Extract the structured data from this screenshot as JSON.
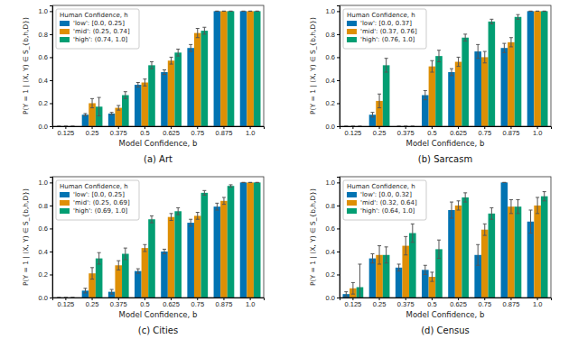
{
  "chart_data": [
    {
      "type": "bar",
      "title": "(a) Art",
      "x_label": "Model Confidence, b",
      "y_label": "P(Y = 1 | (X, Y) ∈ S_{b,h,D})",
      "legend_title": "Human Confidence, h",
      "legend": "upper left",
      "grid": false,
      "categories": [
        "0.125",
        "0.25",
        "0.375",
        "0.5",
        "0.625",
        "0.75",
        "0.875",
        "1.0"
      ],
      "ylim": [
        0,
        1.05
      ],
      "yticks": [
        {
          "value": 0,
          "label": "0.0"
        },
        0.2,
        0.4,
        0.6,
        0.8,
        {
          "value": 1,
          "label": "1.0"
        }
      ],
      "series": [
        {
          "name": "'low': [0.0, 0.25]",
          "color": "#0173b2",
          "values": [
            0,
            0.1,
            0.11,
            0.36,
            0.47,
            0.68,
            1.0,
            1.0
          ],
          "errors": [
            0,
            0.01,
            0.01,
            0.02,
            0.02,
            0.03,
            0,
            0
          ]
        },
        {
          "name": "'mid': (0.25, 0.74]",
          "color": "#de8f05",
          "values": [
            0,
            0.2,
            0.16,
            0.38,
            0.57,
            0.81,
            1.0,
            1.0
          ],
          "errors": [
            0,
            0.04,
            0.02,
            0.03,
            0.03,
            0.04,
            0,
            0
          ]
        },
        {
          "name": "'high': (0.74, 1.0]",
          "color": "#029e73",
          "values": [
            0,
            0.17,
            0.27,
            0.53,
            0.64,
            0.83,
            1.0,
            1.0
          ],
          "errors": [
            0,
            0.08,
            0.03,
            0.03,
            0.03,
            0.03,
            0,
            0
          ]
        }
      ]
    },
    {
      "type": "bar",
      "title": "(b) Sarcasm",
      "x_label": "Model Confidence, b",
      "y_label": "P(Y = 1 | (X, Y) ∈ S_{b,h,D})",
      "legend_title": "Human Confidence, h",
      "legend": "upper left",
      "grid": false,
      "categories": [
        "0.125",
        "0.25",
        "0.375",
        "0.5",
        "0.625",
        "0.75",
        "0.875",
        "1.0"
      ],
      "ylim": [
        0,
        1.05
      ],
      "yticks": [
        {
          "value": 0,
          "label": "0.0"
        },
        0.2,
        0.4,
        0.6,
        0.8,
        {
          "value": 1,
          "label": "1.0"
        }
      ],
      "series": [
        {
          "name": "'low': [0.0, 0.37]",
          "color": "#0173b2",
          "values": [
            0,
            0.1,
            0,
            0.27,
            0.47,
            0.65,
            0.68,
            1.0
          ],
          "errors": [
            0,
            0.02,
            0,
            0.04,
            0.03,
            0.06,
            0.04,
            0
          ]
        },
        {
          "name": "'mid': (0.37, 0.76]",
          "color": "#de8f05",
          "values": [
            0,
            0.22,
            0,
            0.52,
            0.56,
            0.6,
            0.73,
            1.0
          ],
          "errors": [
            0,
            0.06,
            0,
            0.05,
            0.04,
            0.05,
            0.04,
            0
          ]
        },
        {
          "name": "'high': (0.76, 1.0]",
          "color": "#029e73",
          "values": [
            0,
            0.53,
            0,
            0.61,
            0.77,
            0.91,
            0.95,
            1.0
          ],
          "errors": [
            0,
            0.06,
            0,
            0.05,
            0.03,
            0.02,
            0.02,
            0
          ]
        }
      ]
    },
    {
      "type": "bar",
      "title": "(c) Cities",
      "x_label": "Model Confidence, b",
      "y_label": "P(Y = 1 | (X, Y) ∈ S_{b,h,D})",
      "legend_title": "Human Confidence, h",
      "legend": "upper left",
      "grid": false,
      "categories": [
        "0.125",
        "0.25",
        "0.375",
        "0.5",
        "0.625",
        "0.75",
        "0.875",
        "1.0"
      ],
      "ylim": [
        0,
        1.05
      ],
      "yticks": [
        {
          "value": 0,
          "label": "0.0"
        },
        0.2,
        0.4,
        0.6,
        0.8,
        {
          "value": 1,
          "label": "1.0"
        }
      ],
      "series": [
        {
          "name": "'low': [0.0, 0.25]",
          "color": "#0173b2",
          "values": [
            0,
            0.06,
            0.05,
            0.23,
            0.4,
            0.65,
            0.79,
            1.0
          ],
          "errors": [
            0,
            0.02,
            0.02,
            0.02,
            0.02,
            0.03,
            0.03,
            0
          ]
        },
        {
          "name": "'mid': (0.25, 0.69]",
          "color": "#de8f05",
          "values": [
            0,
            0.21,
            0.28,
            0.43,
            0.7,
            0.71,
            0.84,
            1.0
          ],
          "errors": [
            0,
            0.05,
            0.04,
            0.03,
            0.03,
            0.03,
            0.03,
            0
          ]
        },
        {
          "name": "'high': (0.69, 1.0]",
          "color": "#029e73",
          "values": [
            0,
            0.34,
            0.38,
            0.68,
            0.75,
            0.91,
            0.97,
            1.0
          ],
          "errors": [
            0,
            0.05,
            0.05,
            0.03,
            0.03,
            0.02,
            0.01,
            0
          ]
        }
      ]
    },
    {
      "type": "bar",
      "title": "(d) Census",
      "x_label": "Model Confidence, b",
      "y_label": "P(Y = 1 | (X, Y) ∈ S_{b,h,D})",
      "legend_title": "Human Confidence, h",
      "legend": "upper left",
      "grid": false,
      "categories": [
        "0.125",
        "0.25",
        "0.375",
        "0.5",
        "0.625",
        "0.75",
        "0.875",
        "1.0"
      ],
      "ylim": [
        0,
        1.05
      ],
      "yticks": [
        {
          "value": 0,
          "label": "0.0"
        },
        0.2,
        0.4,
        0.6,
        0.8,
        {
          "value": 1,
          "label": "1.0"
        }
      ],
      "series": [
        {
          "name": "'low': [0.0, 0.32]",
          "color": "#0173b2",
          "values": [
            0.03,
            0.34,
            0.26,
            0.24,
            0.76,
            0.37,
            1.0,
            0.66
          ],
          "errors": [
            0.02,
            0.04,
            0.03,
            0.04,
            0.07,
            0.09,
            0,
            0.1
          ]
        },
        {
          "name": "'mid': (0.32, 0.64]",
          "color": "#de8f05",
          "values": [
            0.08,
            0.37,
            0.45,
            0.18,
            0.8,
            0.59,
            0.79,
            0.8
          ],
          "errors": [
            0.05,
            0.08,
            0.08,
            0.04,
            0.04,
            0.05,
            0.06,
            0.07
          ]
        },
        {
          "name": "'high': (0.64, 1.0]",
          "color": "#029e73",
          "values": [
            0.09,
            0.37,
            0.56,
            0.42,
            0.87,
            0.73,
            0.79,
            0.88
          ],
          "errors": [
            0.2,
            0.07,
            0.08,
            0.08,
            0.04,
            0.05,
            0.06,
            0.04
          ]
        }
      ]
    }
  ]
}
